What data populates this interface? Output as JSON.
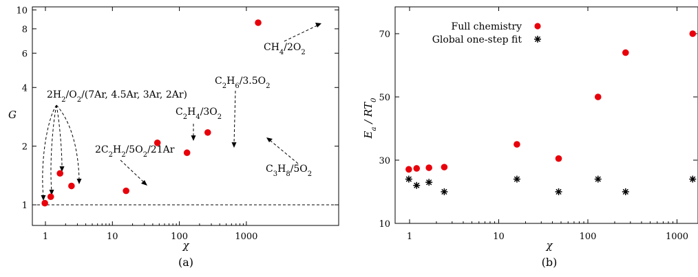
{
  "chart_data": [
    {
      "type": "scatter",
      "panel_label": "(a)",
      "xlabel": "χ",
      "ylabel": "G",
      "xscale": "log",
      "yscale": "log",
      "xlim": [
        0.8,
        1900
      ],
      "ylim": [
        0.8,
        10
      ],
      "xticks": [
        1,
        10,
        100,
        1000
      ],
      "xtick_labels": [
        "1",
        "10",
        "100",
        "1000"
      ],
      "yticks": [
        1,
        2,
        4,
        6,
        8,
        10
      ],
      "ytick_labels": [
        "1",
        "2",
        "4",
        "6",
        "8",
        "10"
      ],
      "reference_line": {
        "y": 1,
        "style": "dashed"
      },
      "series": [
        {
          "marker": "filled-circle",
          "color": "#e8000b",
          "points": [
            {
              "x": 0.98,
              "y": 1.02
            },
            {
              "x": 1.2,
              "y": 1.1
            },
            {
              "x": 1.65,
              "y": 1.45
            },
            {
              "x": 2.45,
              "y": 1.25
            },
            {
              "x": 16,
              "y": 1.18
            },
            {
              "x": 47,
              "y": 2.08
            },
            {
              "x": 130,
              "y": 1.85
            },
            {
              "x": 265,
              "y": 2.35
            },
            {
              "x": 1500,
              "y": 8.6
            }
          ]
        }
      ],
      "annotations": [
        {
          "text": "2H₂/O₂/(7Ar, 4.5Ar, 3Ar, 2Ar)"
        },
        {
          "text": "2C₂H₂/5O₂/21Ar"
        },
        {
          "text": "C₂H₄/3O₂"
        },
        {
          "text": "C₂H₆/3.5O₂"
        },
        {
          "text": "C₃H₈/5O₂"
        },
        {
          "text": "CH₄/2O₂"
        }
      ],
      "grid": false
    },
    {
      "type": "scatter",
      "panel_label": "(b)",
      "xlabel": "χ",
      "ylabel": "Ea / RT0",
      "xscale": "log",
      "yscale": "linear",
      "xlim": [
        0.8,
        1900
      ],
      "ylim": [
        10,
        80
      ],
      "xticks": [
        1,
        10,
        100,
        1000
      ],
      "xtick_labels": [
        "1",
        "10",
        "100",
        "1000"
      ],
      "yticks": [
        10,
        30,
        50,
        70
      ],
      "ytick_labels": [
        "10",
        "30",
        "50",
        "70"
      ],
      "legend": {
        "position": "top-left"
      },
      "series": [
        {
          "name": "Full chemistry",
          "marker": "filled-circle",
          "color": "#e8000b",
          "points": [
            {
              "x": 0.98,
              "y": 27.1
            },
            {
              "x": 1.2,
              "y": 27.4
            },
            {
              "x": 1.65,
              "y": 27.6
            },
            {
              "x": 2.45,
              "y": 27.8
            },
            {
              "x": 16,
              "y": 35
            },
            {
              "x": 47,
              "y": 30.5
            },
            {
              "x": 130,
              "y": 50
            },
            {
              "x": 265,
              "y": 64
            },
            {
              "x": 1500,
              "y": 70
            }
          ]
        },
        {
          "name": "Global one-step fit",
          "marker": "asterisk",
          "color": "#000000",
          "points": [
            {
              "x": 0.98,
              "y": 24
            },
            {
              "x": 1.2,
              "y": 22
            },
            {
              "x": 1.65,
              "y": 23
            },
            {
              "x": 2.45,
              "y": 20
            },
            {
              "x": 16,
              "y": 24
            },
            {
              "x": 47,
              "y": 20
            },
            {
              "x": 130,
              "y": 24
            },
            {
              "x": 265,
              "y": 20
            },
            {
              "x": 1500,
              "y": 24
            }
          ]
        }
      ],
      "grid": false
    }
  ]
}
